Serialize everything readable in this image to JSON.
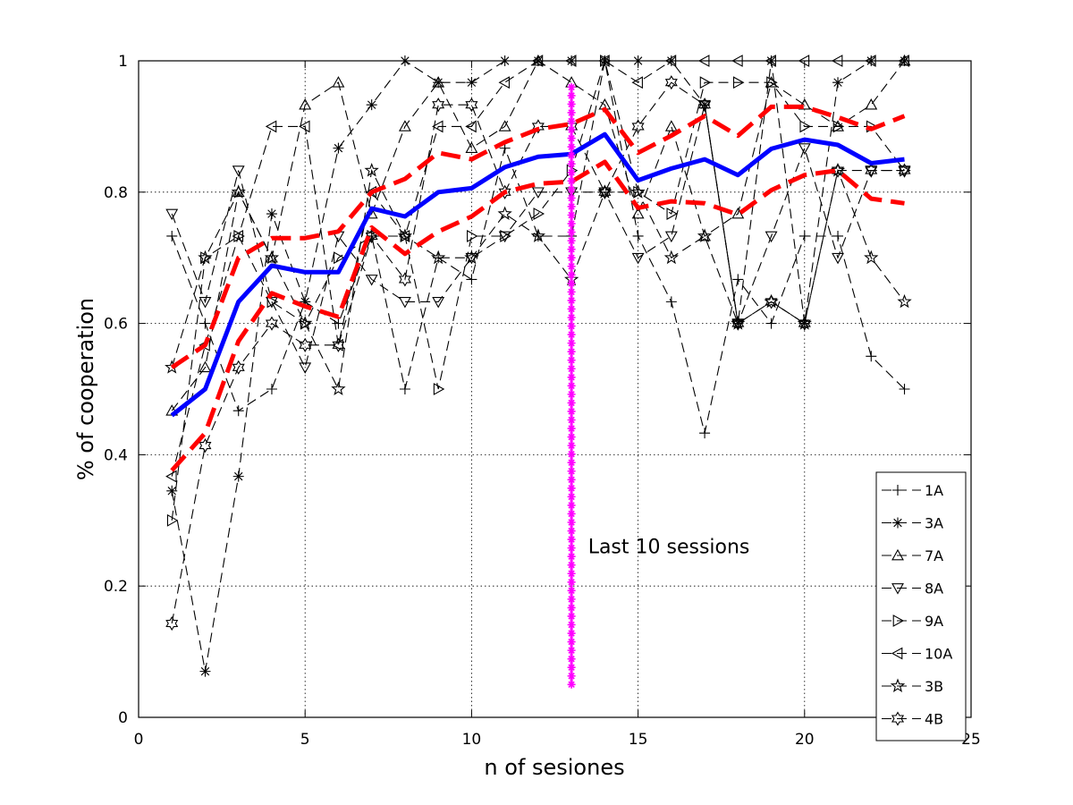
{
  "chart_data": {
    "type": "line",
    "xlabel": "n of sesiones",
    "ylabel": "% of cooperation",
    "xlim": [
      0,
      25
    ],
    "ylim": [
      0,
      1
    ],
    "xticks": [
      0,
      5,
      10,
      15,
      20,
      25
    ],
    "yticks": [
      0,
      0.2,
      0.4,
      0.6,
      0.8,
      1
    ],
    "xtick_labels": [
      "0",
      "5",
      "10",
      "15",
      "20",
      "25"
    ],
    "ytick_labels": [
      "0",
      "0.2",
      "0.4",
      "0.6",
      "0.8",
      "1"
    ],
    "grid": true,
    "legend_position": "bottom-right",
    "annotation": {
      "text": "Last 10 sessions",
      "x": 13.5,
      "y": 0.25
    },
    "vline": {
      "x": 13,
      "y_from": 0.05,
      "y_to": 0.96,
      "color": "#ff00ff"
    },
    "x": [
      1,
      2,
      3,
      4,
      5,
      6,
      7,
      8,
      9,
      10,
      11,
      12,
      13,
      14,
      15,
      16,
      17,
      18,
      19,
      20,
      21,
      22,
      23
    ],
    "series": [
      {
        "name": "1A",
        "marker": "plus",
        "values": [
          0.733,
          0.6,
          0.467,
          0.5,
          0.633,
          0.6,
          0.733,
          0.5,
          0.7,
          0.667,
          0.867,
          0.733,
          0.733,
          1.0,
          0.733,
          0.633,
          0.433,
          0.667,
          0.6,
          0.733,
          0.733,
          0.55,
          0.5
        ]
      },
      {
        "name": "3A",
        "marker": "asterisk",
        "values": [
          0.345,
          0.07,
          0.367,
          0.767,
          0.633,
          0.867,
          0.933,
          1.0,
          0.967,
          0.967,
          1.0,
          1.0,
          1.0,
          1.0,
          1.0,
          1.0,
          0.933,
          0.6,
          1.0,
          0.6,
          0.967,
          1.0,
          1.0
        ]
      },
      {
        "name": "7A",
        "marker": "triangle-up",
        "values": [
          0.467,
          0.533,
          0.8,
          0.7,
          0.933,
          0.967,
          0.767,
          0.9,
          0.967,
          0.867,
          0.9,
          1.0,
          0.967,
          0.933,
          0.767,
          0.9,
          0.733,
          0.767,
          0.967,
          0.933,
          0.9,
          0.933,
          1.0
        ]
      },
      {
        "name": "8A",
        "marker": "triangle-down",
        "values": [
          0.767,
          0.633,
          0.833,
          0.633,
          0.533,
          0.733,
          0.667,
          0.633,
          0.633,
          0.7,
          0.733,
          0.8,
          0.8,
          0.8,
          0.7,
          0.733,
          0.933,
          0.6,
          0.733,
          0.867,
          0.7,
          0.833,
          0.833
        ]
      },
      {
        "name": "9A",
        "marker": "triangle-right",
        "values": [
          0.3,
          0.7,
          0.733,
          0.633,
          0.6,
          0.7,
          0.733,
          0.733,
          0.5,
          0.733,
          0.733,
          0.767,
          0.833,
          1.0,
          0.8,
          0.767,
          0.967,
          0.967,
          0.967,
          0.9,
          0.9,
          0.9,
          0.833
        ]
      },
      {
        "name": "10A",
        "marker": "triangle-left",
        "values": [
          0.367,
          0.567,
          0.733,
          0.9,
          0.9,
          0.567,
          0.8,
          0.733,
          0.9,
          0.9,
          0.967,
          1.0,
          1.0,
          1.0,
          0.967,
          1.0,
          1.0,
          1.0,
          1.0,
          1.0,
          1.0,
          1.0,
          1.0
        ]
      },
      {
        "name": "3B",
        "marker": "star5",
        "values": [
          0.533,
          0.7,
          0.8,
          0.7,
          0.6,
          0.5,
          0.833,
          0.733,
          0.7,
          0.7,
          0.767,
          0.733,
          0.667,
          0.8,
          0.8,
          0.7,
          0.733,
          0.6,
          0.633,
          0.6,
          0.833,
          0.7,
          0.633
        ]
      },
      {
        "name": "4B",
        "marker": "star6",
        "values": [
          0.143,
          0.414,
          0.533,
          0.6,
          0.567,
          0.567,
          0.733,
          0.667,
          0.933,
          0.933,
          0.8,
          0.9,
          0.9,
          0.8,
          0.9,
          0.967,
          0.933,
          0.6,
          0.633,
          0.6,
          0.833,
          0.833,
          0.833
        ]
      }
    ],
    "summary_series": [
      {
        "style": "solid",
        "color": "#0000ff",
        "values": [
          0.46,
          0.5,
          0.633,
          0.688,
          0.678,
          0.678,
          0.775,
          0.763,
          0.8,
          0.806,
          0.838,
          0.854,
          0.858,
          0.888,
          0.818,
          0.836,
          0.85,
          0.826,
          0.866,
          0.88,
          0.872,
          0.844,
          0.85
        ]
      },
      {
        "style": "dashed",
        "color": "#ff0000",
        "values": [
          0.533,
          0.567,
          0.7,
          0.73,
          0.73,
          0.74,
          0.8,
          0.82,
          0.86,
          0.85,
          0.876,
          0.896,
          0.904,
          0.926,
          0.86,
          0.886,
          0.916,
          0.886,
          0.93,
          0.93,
          0.914,
          0.896,
          0.916
        ]
      },
      {
        "style": "dashed",
        "color": "#ff0000",
        "values": [
          0.376,
          0.433,
          0.573,
          0.646,
          0.626,
          0.61,
          0.746,
          0.706,
          0.74,
          0.763,
          0.8,
          0.813,
          0.816,
          0.846,
          0.776,
          0.786,
          0.783,
          0.766,
          0.803,
          0.826,
          0.833,
          0.79,
          0.783
        ]
      }
    ]
  }
}
